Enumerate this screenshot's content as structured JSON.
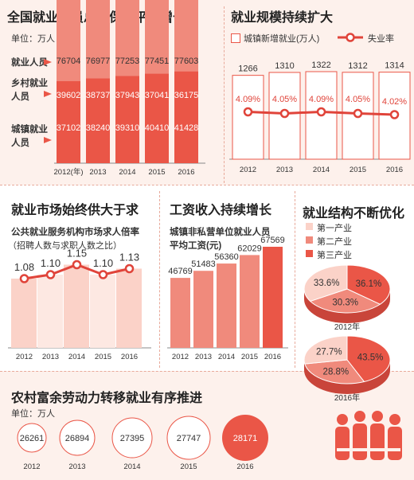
{
  "chart_data": [
    {
      "type": "bar",
      "title": "全国就业人员总量保持平稳增长",
      "unit": "单位：万人",
      "row_labels": [
        "就业人员",
        "乡村就业人员",
        "城镇就业人员"
      ],
      "categories": [
        "2012(年)",
        "2013",
        "2014",
        "2015",
        "2016"
      ],
      "totals": [
        76704,
        76977,
        77253,
        77451,
        77603
      ],
      "series": [
        {
          "name": "乡村就业人员",
          "values": [
            39602,
            38737,
            37943,
            37041,
            36175
          ]
        },
        {
          "name": "城镇就业人员",
          "values": [
            37102,
            38240,
            39310,
            40410,
            41428
          ]
        }
      ]
    },
    {
      "type": "bar",
      "title": "就业规模持续扩大",
      "categories": [
        "2012",
        "2013",
        "2014",
        "2015",
        "2016"
      ],
      "series": [
        {
          "name": "城镇新增就业(万人)",
          "type": "bar",
          "values": [
            1266,
            1310,
            1322,
            1312,
            1314
          ]
        },
        {
          "name": "失业率",
          "type": "line",
          "values": [
            4.09,
            4.05,
            4.09,
            4.05,
            4.02
          ],
          "labels": [
            "4.09%",
            "4.05%",
            "4.09%",
            "4.05%",
            "4.02%"
          ]
        }
      ]
    },
    {
      "type": "line",
      "title": "就业市场始终供大于求",
      "subtitle": "公共就业服务机构市场求人倍率",
      "note": "（招聘人数与求职人数之比）",
      "categories": [
        "2012",
        "2013",
        "2014",
        "2015",
        "2016"
      ],
      "values": [
        1.08,
        1.1,
        1.15,
        1.1,
        1.13
      ],
      "labels": [
        "1.08",
        "1.10",
        "1.15",
        "1.10",
        "1.13"
      ]
    },
    {
      "type": "bar",
      "title": "工资收入持续增长",
      "subtitle": "城镇非私营单位就业人员",
      "subtitle2": "平均工资(元)",
      "categories": [
        "2012",
        "2013",
        "2014",
        "2015",
        "2016"
      ],
      "values": [
        46769,
        51483,
        56360,
        62029,
        67569
      ]
    },
    {
      "type": "pie",
      "title": "就业结构不断优化",
      "legend": [
        "第一产业",
        "第二产业",
        "第三产业"
      ],
      "pies": [
        {
          "year": "2012年",
          "values": [
            33.6,
            30.3,
            36.1
          ],
          "labels": [
            "33.6%",
            "30.3%",
            "36.1%"
          ]
        },
        {
          "year": "2016年",
          "values": [
            27.7,
            28.8,
            43.5
          ],
          "labels": [
            "27.7%",
            "28.8%",
            "43.5%"
          ]
        }
      ]
    },
    {
      "type": "bubble",
      "title": "农村富余劳动力转移就业有序推进",
      "unit": "单位：万人",
      "categories": [
        "2012",
        "2013",
        "2014",
        "2015",
        "2016"
      ],
      "values": [
        26261,
        26894,
        27395,
        27747,
        28171
      ]
    }
  ],
  "colors": {
    "dark": "#ea5647",
    "light": "#f08a7c",
    "pale": "#fbd2c8",
    "line": "#e0443a",
    "bg": "#fdf1ec"
  }
}
